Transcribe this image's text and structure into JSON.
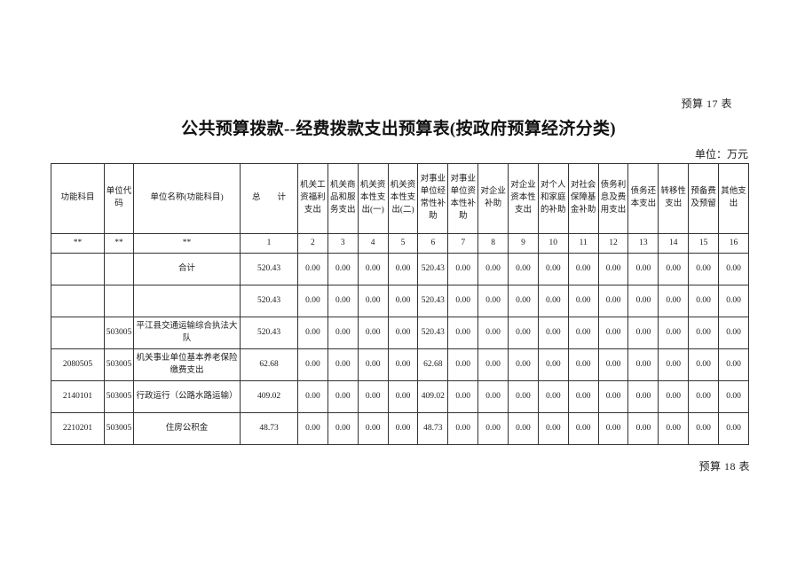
{
  "page": {
    "top_right_label": "预算 17 表",
    "title": "公共预算拨款--经费拨款支出预算表(按政府预算经济分类)",
    "unit_label": "单位：万元",
    "bottom_right_label": "预算 18 表"
  },
  "table": {
    "headers": [
      "功能科目",
      "单位代码",
      "单位名称(功能科目)",
      "总　　计",
      "机关工资福利支出",
      "机关商品和服务支出",
      "机关资本性支出(一)",
      "机关资本性支出(二)",
      "对事业单位经常性补助",
      "对事业单位资本性补助",
      "对企业补助",
      "对企业资本性支出",
      "对个人和家庭的补助",
      "对社会保障基金补助",
      "债务利息及费用支出",
      "债务还本支出",
      "转移性支出",
      "预备费及预留",
      "其他支出"
    ],
    "index_row": [
      "**",
      "**",
      "**",
      "1",
      "2",
      "3",
      "4",
      "5",
      "6",
      "7",
      "8",
      "9",
      "10",
      "11",
      "12",
      "13",
      "14",
      "15",
      "16"
    ],
    "rows": [
      [
        "",
        "",
        "合计",
        "520.43",
        "0.00",
        "0.00",
        "0.00",
        "0.00",
        "520.43",
        "0.00",
        "0.00",
        "0.00",
        "0.00",
        "0.00",
        "0.00",
        "0.00",
        "0.00",
        "0.00",
        "0.00"
      ],
      [
        "",
        "",
        "",
        "520.43",
        "0.00",
        "0.00",
        "0.00",
        "0.00",
        "520.43",
        "0.00",
        "0.00",
        "0.00",
        "0.00",
        "0.00",
        "0.00",
        "0.00",
        "0.00",
        "0.00",
        "0.00"
      ],
      [
        "",
        "503005",
        "平江县交通运输综合执法大队",
        "520.43",
        "0.00",
        "0.00",
        "0.00",
        "0.00",
        "520.43",
        "0.00",
        "0.00",
        "0.00",
        "0.00",
        "0.00",
        "0.00",
        "0.00",
        "0.00",
        "0.00",
        "0.00"
      ],
      [
        "2080505",
        "503005",
        "机关事业单位基本养老保险缴费支出",
        "62.68",
        "0.00",
        "0.00",
        "0.00",
        "0.00",
        "62.68",
        "0.00",
        "0.00",
        "0.00",
        "0.00",
        "0.00",
        "0.00",
        "0.00",
        "0.00",
        "0.00",
        "0.00"
      ],
      [
        "2140101",
        "503005",
        "行政运行（公路水路运输）",
        "409.02",
        "0.00",
        "0.00",
        "0.00",
        "0.00",
        "409.02",
        "0.00",
        "0.00",
        "0.00",
        "0.00",
        "0.00",
        "0.00",
        "0.00",
        "0.00",
        "0.00",
        "0.00"
      ],
      [
        "2210201",
        "503005",
        "住房公积金",
        "48.73",
        "0.00",
        "0.00",
        "0.00",
        "0.00",
        "48.73",
        "0.00",
        "0.00",
        "0.00",
        "0.00",
        "0.00",
        "0.00",
        "0.00",
        "0.00",
        "0.00",
        "0.00"
      ]
    ]
  }
}
